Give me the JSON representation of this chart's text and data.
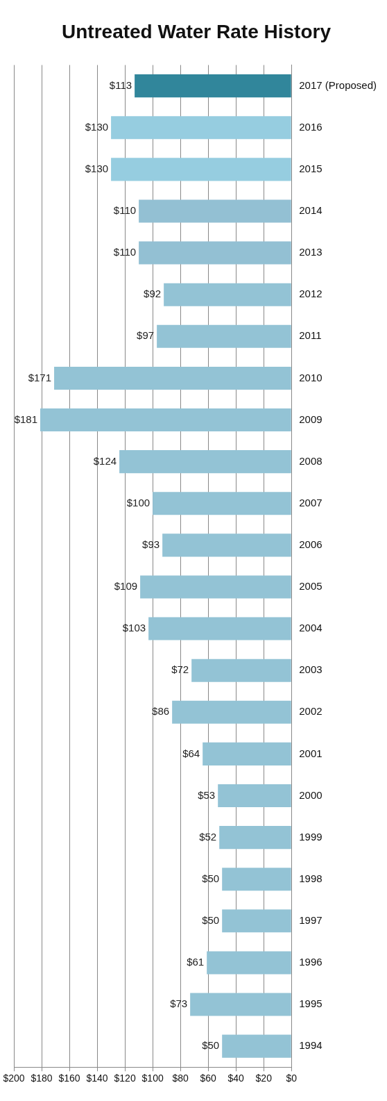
{
  "chart_data": {
    "type": "bar",
    "orientation": "horizontal",
    "title": "Untreated Water Rate History",
    "categories": [
      "2017 (Proposed)",
      "2016",
      "2015",
      "2014",
      "2013",
      "2012",
      "2011",
      "2010",
      "2009",
      "2008",
      "2007",
      "2006",
      "2005",
      "2004",
      "2003",
      "2002",
      "2001",
      "2000",
      "1999",
      "1998",
      "1997",
      "1996",
      "1995",
      "1994"
    ],
    "values": [
      113,
      130,
      130,
      110,
      110,
      92,
      97,
      171,
      181,
      124,
      100,
      93,
      109,
      103,
      72,
      86,
      64,
      53,
      52,
      50,
      50,
      61,
      73,
      50
    ],
    "colors": [
      "#31869b",
      "#96cde0",
      "#96cde0",
      "#93c0d3",
      "#93c0d3",
      "#93c3d5",
      "#93c3d5",
      "#93c3d5",
      "#93c3d5",
      "#93c3d5",
      "#93c3d5",
      "#93c3d5",
      "#93c3d5",
      "#93c3d5",
      "#93c3d5",
      "#93c3d5",
      "#93c3d5",
      "#93c3d5",
      "#93c3d5",
      "#93c3d5",
      "#93c3d5",
      "#93c3d5",
      "#93c3d5",
      "#93c3d5"
    ],
    "value_labels": [
      "$113",
      "$130",
      "$130",
      "$110",
      "$110",
      "$92",
      "$97",
      "$171",
      "$181",
      "$124",
      "$100",
      "$93",
      "$109",
      "$103",
      "$72",
      "$86",
      "$64",
      "$53",
      "$52",
      "$50",
      "$50",
      "$61",
      "$73",
      "$50"
    ],
    "xlim": [
      200,
      0
    ],
    "xticks": [
      {
        "value": 0,
        "label": "$0"
      },
      {
        "value": 20,
        "label": "$20"
      },
      {
        "value": 40,
        "label": "$40"
      },
      {
        "value": 60,
        "label": "$60"
      },
      {
        "value": 80,
        "label": "$80"
      },
      {
        "value": 100,
        "label": "$100"
      },
      {
        "value": 120,
        "label": "$120"
      },
      {
        "value": 140,
        "label": "$140"
      },
      {
        "value": 160,
        "label": "$160"
      },
      {
        "value": 180,
        "label": "$180"
      },
      {
        "value": 200,
        "label": "$200"
      }
    ],
    "grid": "x",
    "legend": false
  }
}
